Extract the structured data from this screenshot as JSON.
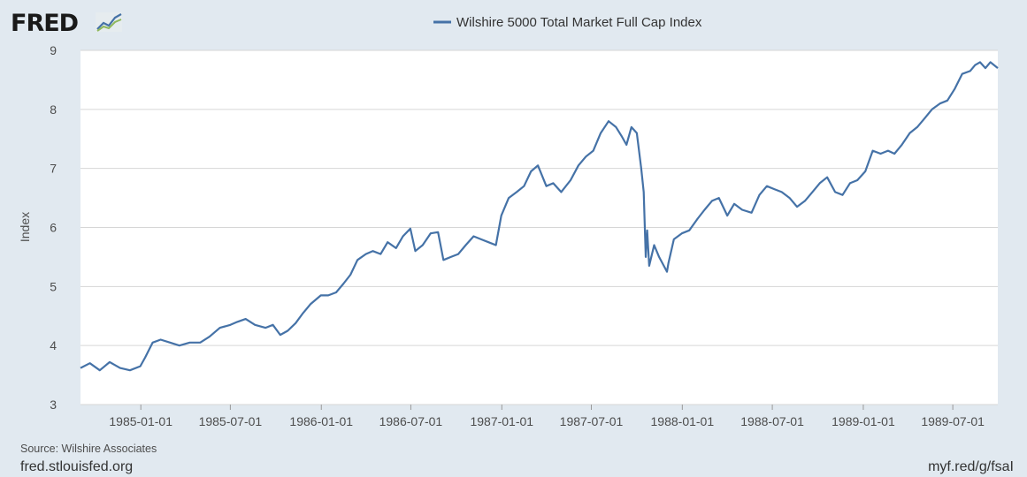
{
  "header": {
    "logo_text": "FRED",
    "logo_icon": "fred-chart-logo-icon"
  },
  "footer": {
    "source": "Source: Wilshire Associates",
    "site": "fred.stlouisfed.org",
    "short_link": "myf.red/g/fsaI"
  },
  "colors": {
    "series": "#4572a7",
    "grid": "#d6d6d6",
    "plot_bg": "#ffffff",
    "page_bg": "#e1e9f0"
  },
  "chart_data": {
    "type": "line",
    "title": "",
    "xlabel": "",
    "ylabel": "Index",
    "ylim": [
      3,
      9
    ],
    "yticks": [
      3,
      4,
      5,
      6,
      7,
      8,
      9
    ],
    "xlim": [
      "1984-09-01",
      "1989-09-30"
    ],
    "xticks": [
      "1985-01-01",
      "1985-07-01",
      "1986-01-01",
      "1986-07-01",
      "1987-01-01",
      "1987-07-01",
      "1988-01-01",
      "1988-07-01",
      "1989-01-01",
      "1989-07-01"
    ],
    "grid": true,
    "legend": "top-center",
    "series": [
      {
        "name": "Wilshire 5000 Total Market Full Cap Index",
        "x": [
          "1984-09-01",
          "1984-09-20",
          "1984-10-10",
          "1984-10-30",
          "1984-11-20",
          "1984-12-10",
          "1984-12-31",
          "1985-01-10",
          "1985-01-25",
          "1985-02-10",
          "1985-03-01",
          "1985-03-20",
          "1985-04-10",
          "1985-05-01",
          "1985-05-20",
          "1985-06-10",
          "1985-07-01",
          "1985-07-15",
          "1985-08-01",
          "1985-08-20",
          "1985-09-10",
          "1985-09-25",
          "1985-10-10",
          "1985-10-25",
          "1985-11-10",
          "1985-11-25",
          "1985-12-10",
          "1985-12-31",
          "1986-01-15",
          "1986-01-31",
          "1986-02-15",
          "1986-03-01",
          "1986-03-15",
          "1986-04-01",
          "1986-04-15",
          "1986-05-01",
          "1986-05-15",
          "1986-06-01",
          "1986-06-15",
          "1986-06-30",
          "1986-07-10",
          "1986-07-25",
          "1986-08-10",
          "1986-08-25",
          "1986-09-05",
          "1986-09-20",
          "1986-10-05",
          "1986-10-20",
          "1986-11-05",
          "1986-11-20",
          "1986-12-05",
          "1986-12-20",
          "1986-12-31",
          "1987-01-15",
          "1987-01-31",
          "1987-02-15",
          "1987-03-01",
          "1987-03-15",
          "1987-04-01",
          "1987-04-15",
          "1987-05-01",
          "1987-05-20",
          "1987-06-05",
          "1987-06-20",
          "1987-07-05",
          "1987-07-20",
          "1987-08-05",
          "1987-08-20",
          "1987-08-31",
          "1987-09-10",
          "1987-09-20",
          "1987-10-01",
          "1987-10-10",
          "1987-10-15",
          "1987-10-19",
          "1987-10-22",
          "1987-10-26",
          "1987-11-05",
          "1987-11-15",
          "1987-12-01",
          "1987-12-04",
          "1987-12-15",
          "1987-12-31",
          "1988-01-15",
          "1988-02-01",
          "1988-02-15",
          "1988-03-01",
          "1988-03-15",
          "1988-04-01",
          "1988-04-15",
          "1988-05-01",
          "1988-05-20",
          "1988-06-05",
          "1988-06-20",
          "1988-07-05",
          "1988-07-20",
          "1988-08-05",
          "1988-08-20",
          "1988-09-05",
          "1988-09-20",
          "1988-10-05",
          "1988-10-20",
          "1988-11-05",
          "1988-11-20",
          "1988-12-05",
          "1988-12-20",
          "1989-01-05",
          "1989-01-20",
          "1989-02-05",
          "1989-02-20",
          "1989-03-05",
          "1989-03-20",
          "1989-04-05",
          "1989-04-20",
          "1989-05-05",
          "1989-05-20",
          "1989-06-05",
          "1989-06-20",
          "1989-07-05",
          "1989-07-20",
          "1989-08-05",
          "1989-08-15",
          "1989-08-25",
          "1989-09-05",
          "1989-09-15",
          "1989-09-30"
        ],
        "values": [
          3.62,
          3.7,
          3.58,
          3.72,
          3.62,
          3.58,
          3.65,
          3.8,
          4.05,
          4.1,
          4.05,
          4.0,
          4.05,
          4.05,
          4.15,
          4.3,
          4.35,
          4.4,
          4.45,
          4.35,
          4.3,
          4.35,
          4.18,
          4.25,
          4.38,
          4.55,
          4.7,
          4.85,
          4.85,
          4.9,
          5.05,
          5.2,
          5.45,
          5.55,
          5.6,
          5.55,
          5.75,
          5.65,
          5.85,
          5.98,
          5.6,
          5.7,
          5.9,
          5.92,
          5.45,
          5.5,
          5.55,
          5.7,
          5.85,
          5.8,
          5.75,
          5.7,
          6.2,
          6.5,
          6.6,
          6.7,
          6.95,
          7.05,
          6.7,
          6.75,
          6.6,
          6.8,
          7.05,
          7.2,
          7.3,
          7.6,
          7.8,
          7.7,
          7.55,
          7.4,
          7.7,
          7.6,
          7.0,
          6.6,
          5.5,
          5.95,
          5.35,
          5.7,
          5.5,
          5.25,
          5.4,
          5.8,
          5.9,
          5.95,
          6.15,
          6.3,
          6.45,
          6.5,
          6.2,
          6.4,
          6.3,
          6.25,
          6.55,
          6.7,
          6.65,
          6.6,
          6.5,
          6.35,
          6.45,
          6.6,
          6.75,
          6.85,
          6.6,
          6.55,
          6.75,
          6.8,
          6.95,
          7.3,
          7.25,
          7.3,
          7.25,
          7.4,
          7.6,
          7.7,
          7.85,
          8.0,
          8.1,
          8.15,
          8.35,
          8.6,
          8.65,
          8.75,
          8.8,
          8.7,
          8.8,
          8.7
        ]
      }
    ]
  }
}
